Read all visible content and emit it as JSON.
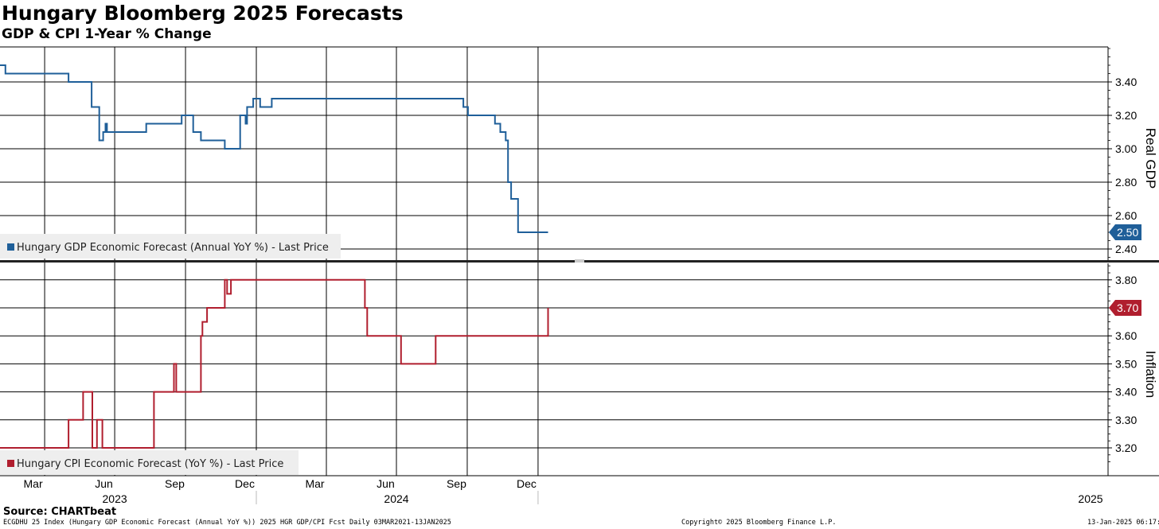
{
  "header": {
    "title": "Hungary Bloomberg 2025 Forecasts",
    "subtitle": "GDP & CPI 1-Year % Change"
  },
  "footer": {
    "source": "Source: CHARTbeat",
    "left": "ECGDHU 25 Index (Hungary GDP Economic Forecast (Annual YoY %)) 2025 HGR GDP/CPI Fcst  Daily 03MAR2021-13JAN2025",
    "middle": "Copyright© 2025 Bloomberg Finance L.P.",
    "right": "13-Jan-2025 06:17:03"
  },
  "colors": {
    "gdp": "#1f5f99",
    "cpi": "#b01e2e",
    "grid": "#000000"
  },
  "chart_data": {
    "type": "line",
    "x_axis": {
      "month_labels": [
        "Mar",
        "Jun",
        "Sep",
        "Dec",
        "Mar",
        "Jun",
        "Sep",
        "Dec"
      ],
      "year_labels": [
        "2023",
        "2024",
        "2025"
      ]
    },
    "panels": [
      {
        "name": "gdp",
        "ylabel": "Real GDP",
        "ylim": [
          2.35,
          3.6
        ],
        "yticks": [
          "2.40",
          "2.60",
          "2.80",
          "3.00",
          "3.20",
          "3.40"
        ],
        "legend": "Hungary GDP Economic Forecast (Annual YoY %) - Last Price",
        "last_value": "2.50",
        "color": "#1f5f99",
        "x": [
          "2023-02-01",
          "2023-02-08",
          "2023-05-01",
          "2023-05-31",
          "2023-06-10",
          "2023-06-15",
          "2023-06-18",
          "2023-06-20",
          "2023-08-10",
          "2023-09-25",
          "2023-10-10",
          "2023-10-20",
          "2023-11-20",
          "2023-12-10",
          "2023-12-17",
          "2023-12-19",
          "2023-12-23",
          "2023-12-27",
          "2024-01-05",
          "2024-01-20",
          "2024-09-20",
          "2024-09-25",
          "2024-10-01",
          "2024-11-05",
          "2024-11-11",
          "2024-11-12",
          "2024-11-19",
          "2024-11-22",
          "2024-11-26",
          "2024-12-01",
          "2024-12-05",
          "2025-01-13"
        ],
        "y": [
          3.5,
          3.45,
          3.4,
          3.25,
          3.05,
          3.1,
          3.15,
          3.1,
          3.15,
          3.2,
          3.1,
          3.05,
          3.0,
          3.2,
          3.15,
          3.25,
          3.25,
          3.3,
          3.25,
          3.3,
          3.3,
          3.25,
          3.2,
          3.15,
          3.15,
          3.1,
          3.05,
          2.8,
          2.7,
          2.7,
          2.5,
          2.5
        ]
      },
      {
        "name": "cpi",
        "ylabel": "Inflation",
        "ylim": [
          3.15,
          3.85
        ],
        "yticks": [
          "3.20",
          "3.30",
          "3.40",
          "3.50",
          "3.60",
          "3.70",
          "3.80"
        ],
        "legend": "Hungary CPI Economic Forecast (YoY %) - Last Price",
        "last_value": "3.70",
        "color": "#b01e2e",
        "x": [
          "2023-02-01",
          "2023-05-01",
          "2023-05-20",
          "2023-06-01",
          "2023-06-07",
          "2023-06-12",
          "2023-06-14",
          "2023-06-17",
          "2023-08-20",
          "2023-09-15",
          "2023-09-18",
          "2023-10-20",
          "2023-10-22",
          "2023-10-24",
          "2023-10-28",
          "2023-11-20",
          "2023-11-23",
          "2023-11-28",
          "2024-05-20",
          "2024-05-23",
          "2024-07-06",
          "2024-08-20",
          "2025-01-13"
        ],
        "y": [
          3.2,
          3.3,
          3.4,
          3.2,
          3.3,
          3.3,
          3.2,
          3.2,
          3.4,
          3.5,
          3.4,
          3.6,
          3.65,
          3.65,
          3.7,
          3.8,
          3.75,
          3.8,
          3.7,
          3.6,
          3.5,
          3.6,
          3.7
        ]
      }
    ]
  }
}
